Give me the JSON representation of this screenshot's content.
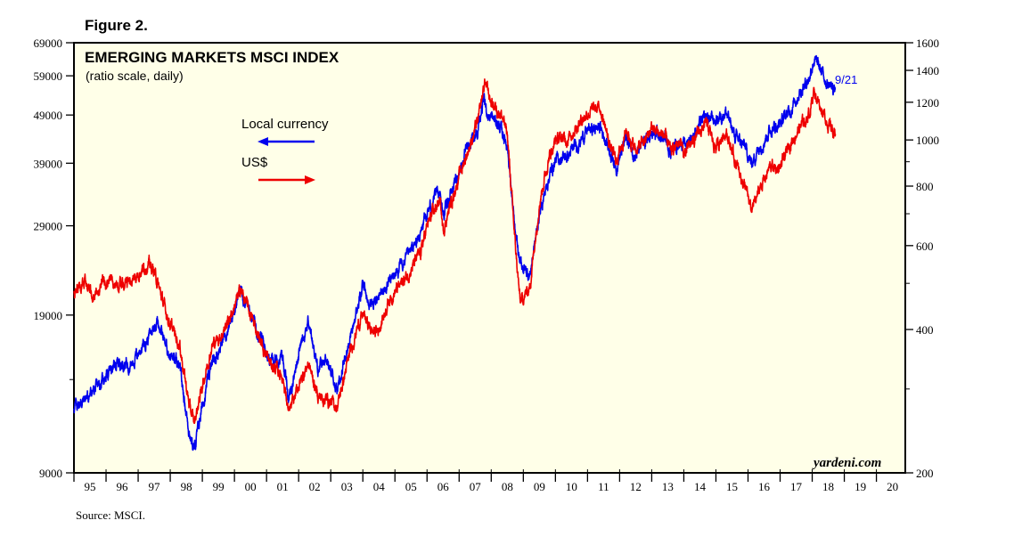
{
  "figure_label": "Figure 2.",
  "source": "Source: MSCI.",
  "chart_data": {
    "type": "line",
    "title": "EMERGING MARKETS MSCI INDEX",
    "subtitle": "(ratio scale, daily)",
    "watermark": "yardeni.com",
    "last_date_label": "9/21",
    "x_start": 1995.0,
    "x_end": 2020.9,
    "x_ticks": [
      "95",
      "96",
      "97",
      "98",
      "99",
      "00",
      "01",
      "02",
      "03",
      "04",
      "05",
      "06",
      "07",
      "08",
      "09",
      "10",
      "11",
      "12",
      "13",
      "14",
      "15",
      "16",
      "17",
      "18",
      "19",
      "20"
    ],
    "left_axis": {
      "scale": "log",
      "range": [
        9000,
        69000
      ],
      "tick_labels": [
        "69000",
        "59000",
        "49000",
        "39000",
        "29000",
        "19000",
        "9000"
      ],
      "tick_values": [
        69000,
        59000,
        49000,
        39000,
        29000,
        19000,
        9000
      ],
      "minor_values": [
        14000
      ]
    },
    "right_axis": {
      "scale": "log",
      "range": [
        200,
        1600
      ],
      "tick_labels": [
        "1600",
        "1400",
        "1200",
        "1000",
        "800",
        "600",
        "400",
        "200"
      ],
      "tick_values": [
        1600,
        1400,
        1200,
        1000,
        800,
        600,
        400,
        200
      ],
      "minor_values": [
        900,
        700,
        500,
        300
      ]
    },
    "series": [
      {
        "name": "Local currency",
        "axis": "left",
        "color": "#0000ee",
        "legend_arrow": "left",
        "points": [
          [
            1995.0,
            12300
          ],
          [
            1995.3,
            12700
          ],
          [
            1995.7,
            13400
          ],
          [
            1996.0,
            14300
          ],
          [
            1996.4,
            15200
          ],
          [
            1996.8,
            15100
          ],
          [
            1997.0,
            15900
          ],
          [
            1997.3,
            17000
          ],
          [
            1997.6,
            18600
          ],
          [
            1997.9,
            16200
          ],
          [
            1998.3,
            14600
          ],
          [
            1998.6,
            10900
          ],
          [
            1998.75,
            10000
          ],
          [
            1999.0,
            12400
          ],
          [
            1999.3,
            15100
          ],
          [
            1999.6,
            16600
          ],
          [
            1999.9,
            18500
          ],
          [
            2000.2,
            21400
          ],
          [
            2000.5,
            19200
          ],
          [
            2000.8,
            17300
          ],
          [
            2001.1,
            15400
          ],
          [
            2001.5,
            15600
          ],
          [
            2001.7,
            12600
          ],
          [
            2002.0,
            16000
          ],
          [
            2002.3,
            18500
          ],
          [
            2002.6,
            14800
          ],
          [
            2002.9,
            15200
          ],
          [
            2003.2,
            13400
          ],
          [
            2003.5,
            16000
          ],
          [
            2003.8,
            19200
          ],
          [
            2004.0,
            21800
          ],
          [
            2004.3,
            20000
          ],
          [
            2004.5,
            20600
          ],
          [
            2004.8,
            22000
          ],
          [
            2005.0,
            23100
          ],
          [
            2005.4,
            24900
          ],
          [
            2005.8,
            27800
          ],
          [
            2006.0,
            30800
          ],
          [
            2006.4,
            34500
          ],
          [
            2006.5,
            30500
          ],
          [
            2006.8,
            34700
          ],
          [
            2007.0,
            37700
          ],
          [
            2007.3,
            42200
          ],
          [
            2007.6,
            46300
          ],
          [
            2007.75,
            52400
          ],
          [
            2007.9,
            49000
          ],
          [
            2008.2,
            47200
          ],
          [
            2008.5,
            42800
          ],
          [
            2008.75,
            27500
          ],
          [
            2008.9,
            24300
          ],
          [
            2009.2,
            22900
          ],
          [
            2009.5,
            30600
          ],
          [
            2009.8,
            36600
          ],
          [
            2010.0,
            39500
          ],
          [
            2010.4,
            40400
          ],
          [
            2010.8,
            43700
          ],
          [
            2011.0,
            45500
          ],
          [
            2011.4,
            46300
          ],
          [
            2011.7,
            41400
          ],
          [
            2011.9,
            38300
          ],
          [
            2012.2,
            43900
          ],
          [
            2012.5,
            40400
          ],
          [
            2012.8,
            43300
          ],
          [
            2013.0,
            44500
          ],
          [
            2013.4,
            43900
          ],
          [
            2013.6,
            41200
          ],
          [
            2013.9,
            43700
          ],
          [
            2014.0,
            42200
          ],
          [
            2014.4,
            45800
          ],
          [
            2014.7,
            48500
          ],
          [
            2015.0,
            47700
          ],
          [
            2015.3,
            50000
          ],
          [
            2015.6,
            44200
          ],
          [
            2015.9,
            42200
          ],
          [
            2016.1,
            38900
          ],
          [
            2016.4,
            42600
          ],
          [
            2016.7,
            45800
          ],
          [
            2017.0,
            47100
          ],
          [
            2017.3,
            50000
          ],
          [
            2017.6,
            54500
          ],
          [
            2017.9,
            58300
          ],
          [
            2018.05,
            63800
          ],
          [
            2018.3,
            60000
          ],
          [
            2018.5,
            56600
          ],
          [
            2018.72,
            55200
          ]
        ]
      },
      {
        "name": "US$",
        "axis": "right",
        "color": "#ee0000",
        "legend_arrow": "right",
        "points": [
          [
            1995.0,
            480
          ],
          [
            1995.3,
            500
          ],
          [
            1995.6,
            470
          ],
          [
            1996.0,
            510
          ],
          [
            1996.4,
            495
          ],
          [
            1996.8,
            505
          ],
          [
            1997.0,
            525
          ],
          [
            1997.3,
            550
          ],
          [
            1997.5,
            530
          ],
          [
            1997.8,
            450
          ],
          [
            1998.0,
            410
          ],
          [
            1998.3,
            370
          ],
          [
            1998.6,
            275
          ],
          [
            1998.75,
            255
          ],
          [
            1999.0,
            305
          ],
          [
            1999.3,
            370
          ],
          [
            1999.6,
            390
          ],
          [
            1999.9,
            430
          ],
          [
            2000.2,
            485
          ],
          [
            2000.5,
            430
          ],
          [
            2000.8,
            380
          ],
          [
            2001.1,
            340
          ],
          [
            2001.5,
            320
          ],
          [
            2001.7,
            265
          ],
          [
            2002.0,
            305
          ],
          [
            2002.3,
            340
          ],
          [
            2002.6,
            290
          ],
          [
            2002.9,
            285
          ],
          [
            2003.2,
            275
          ],
          [
            2003.5,
            335
          ],
          [
            2003.8,
            400
          ],
          [
            2004.0,
            430
          ],
          [
            2004.3,
            395
          ],
          [
            2004.5,
            400
          ],
          [
            2004.8,
            460
          ],
          [
            2005.0,
            480
          ],
          [
            2005.4,
            520
          ],
          [
            2005.8,
            580
          ],
          [
            2006.0,
            660
          ],
          [
            2006.4,
            750
          ],
          [
            2006.5,
            645
          ],
          [
            2006.8,
            760
          ],
          [
            2007.0,
            840
          ],
          [
            2007.3,
            960
          ],
          [
            2007.6,
            1100
          ],
          [
            2007.8,
            1330
          ],
          [
            2008.0,
            1200
          ],
          [
            2008.3,
            1140
          ],
          [
            2008.5,
            1030
          ],
          [
            2008.75,
            600
          ],
          [
            2008.9,
            455
          ],
          [
            2009.2,
            490
          ],
          [
            2009.5,
            740
          ],
          [
            2009.8,
            920
          ],
          [
            2010.0,
            1000
          ],
          [
            2010.4,
            1010
          ],
          [
            2010.8,
            1100
          ],
          [
            2011.0,
            1140
          ],
          [
            2011.4,
            1170
          ],
          [
            2011.7,
            970
          ],
          [
            2011.9,
            900
          ],
          [
            2012.2,
            1050
          ],
          [
            2012.5,
            950
          ],
          [
            2012.8,
            1000
          ],
          [
            2013.0,
            1060
          ],
          [
            2013.4,
            1020
          ],
          [
            2013.6,
            940
          ],
          [
            2013.9,
            1000
          ],
          [
            2014.0,
            930
          ],
          [
            2014.4,
            1020
          ],
          [
            2014.7,
            1080
          ],
          [
            2015.0,
            960
          ],
          [
            2015.3,
            1050
          ],
          [
            2015.6,
            900
          ],
          [
            2015.9,
            800
          ],
          [
            2016.1,
            710
          ],
          [
            2016.4,
            800
          ],
          [
            2016.7,
            880
          ],
          [
            2017.0,
            870
          ],
          [
            2017.3,
            980
          ],
          [
            2017.6,
            1060
          ],
          [
            2017.9,
            1130
          ],
          [
            2018.05,
            1270
          ],
          [
            2018.3,
            1160
          ],
          [
            2018.5,
            1080
          ],
          [
            2018.72,
            1030
          ]
        ]
      }
    ]
  }
}
